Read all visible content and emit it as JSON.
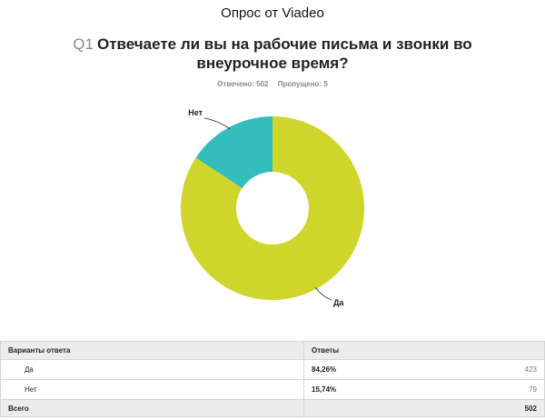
{
  "header": {
    "survey_title": "Опрос от Viadeo",
    "question_number": "Q1",
    "question_text": "Отвечаете ли вы на рабочие письма и звонки во внеурочное время?",
    "answered_label": "Отвечено: 502",
    "skipped_label": "Пропущено: 5"
  },
  "chart_data": {
    "type": "pie",
    "donut": true,
    "title": "",
    "labels": [
      "Да",
      "Нет"
    ],
    "values": [
      84.26,
      15.74
    ],
    "colors": [
      "#cfd62b",
      "#33bdbc"
    ],
    "legend": "none"
  },
  "table": {
    "headers": {
      "choice": "Варианты ответа",
      "responses": "Ответы"
    },
    "rows": [
      {
        "label": "Да",
        "percent": "84,26%",
        "count": "423"
      },
      {
        "label": "Нет",
        "percent": "15,74%",
        "count": "79"
      }
    ],
    "total": {
      "label": "Всего",
      "count": "502"
    }
  }
}
